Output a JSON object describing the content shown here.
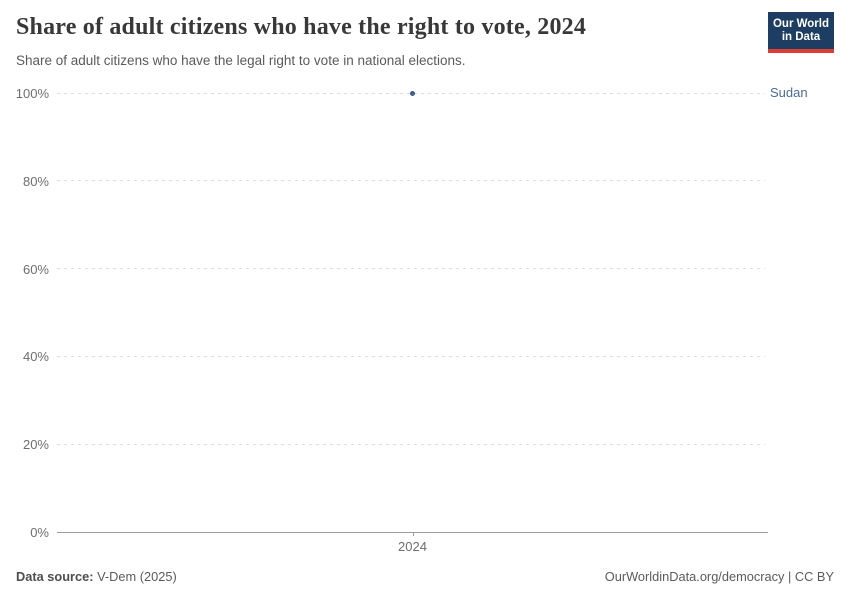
{
  "header": {
    "title": "Share of adult citizens who have the right to vote, 2024",
    "subtitle": "Share of adult citizens who have the legal right to vote in national elections.",
    "logo": {
      "line1": "Our World",
      "line2": "in Data",
      "bg": "#1d3d63",
      "bar": "#dc3e34"
    }
  },
  "chart_data": {
    "type": "scatter",
    "title": "Share of adult citizens who have the right to vote, 2024",
    "x": [
      2024
    ],
    "series": [
      {
        "name": "Sudan",
        "values": [
          100
        ],
        "color": "#3e5e8f",
        "label_color": "#4c6a9c"
      }
    ],
    "xlabel": "",
    "ylabel": "",
    "ylim": [
      0,
      100
    ],
    "yticks": [
      0,
      20,
      40,
      60,
      80,
      100
    ],
    "ytick_labels": [
      "0%",
      "20%",
      "40%",
      "60%",
      "80%",
      "100%"
    ],
    "xticks": [
      2024
    ],
    "xtick_labels": [
      "2024"
    ],
    "grid": true,
    "grid_color": "#dcdcdc",
    "axis_color": "#9e9e9e",
    "legend_position": "right"
  },
  "footer": {
    "source_label": "Data source:",
    "source_value": "V-Dem (2025)",
    "rights": "OurWorldinData.org/democracy | CC BY"
  }
}
